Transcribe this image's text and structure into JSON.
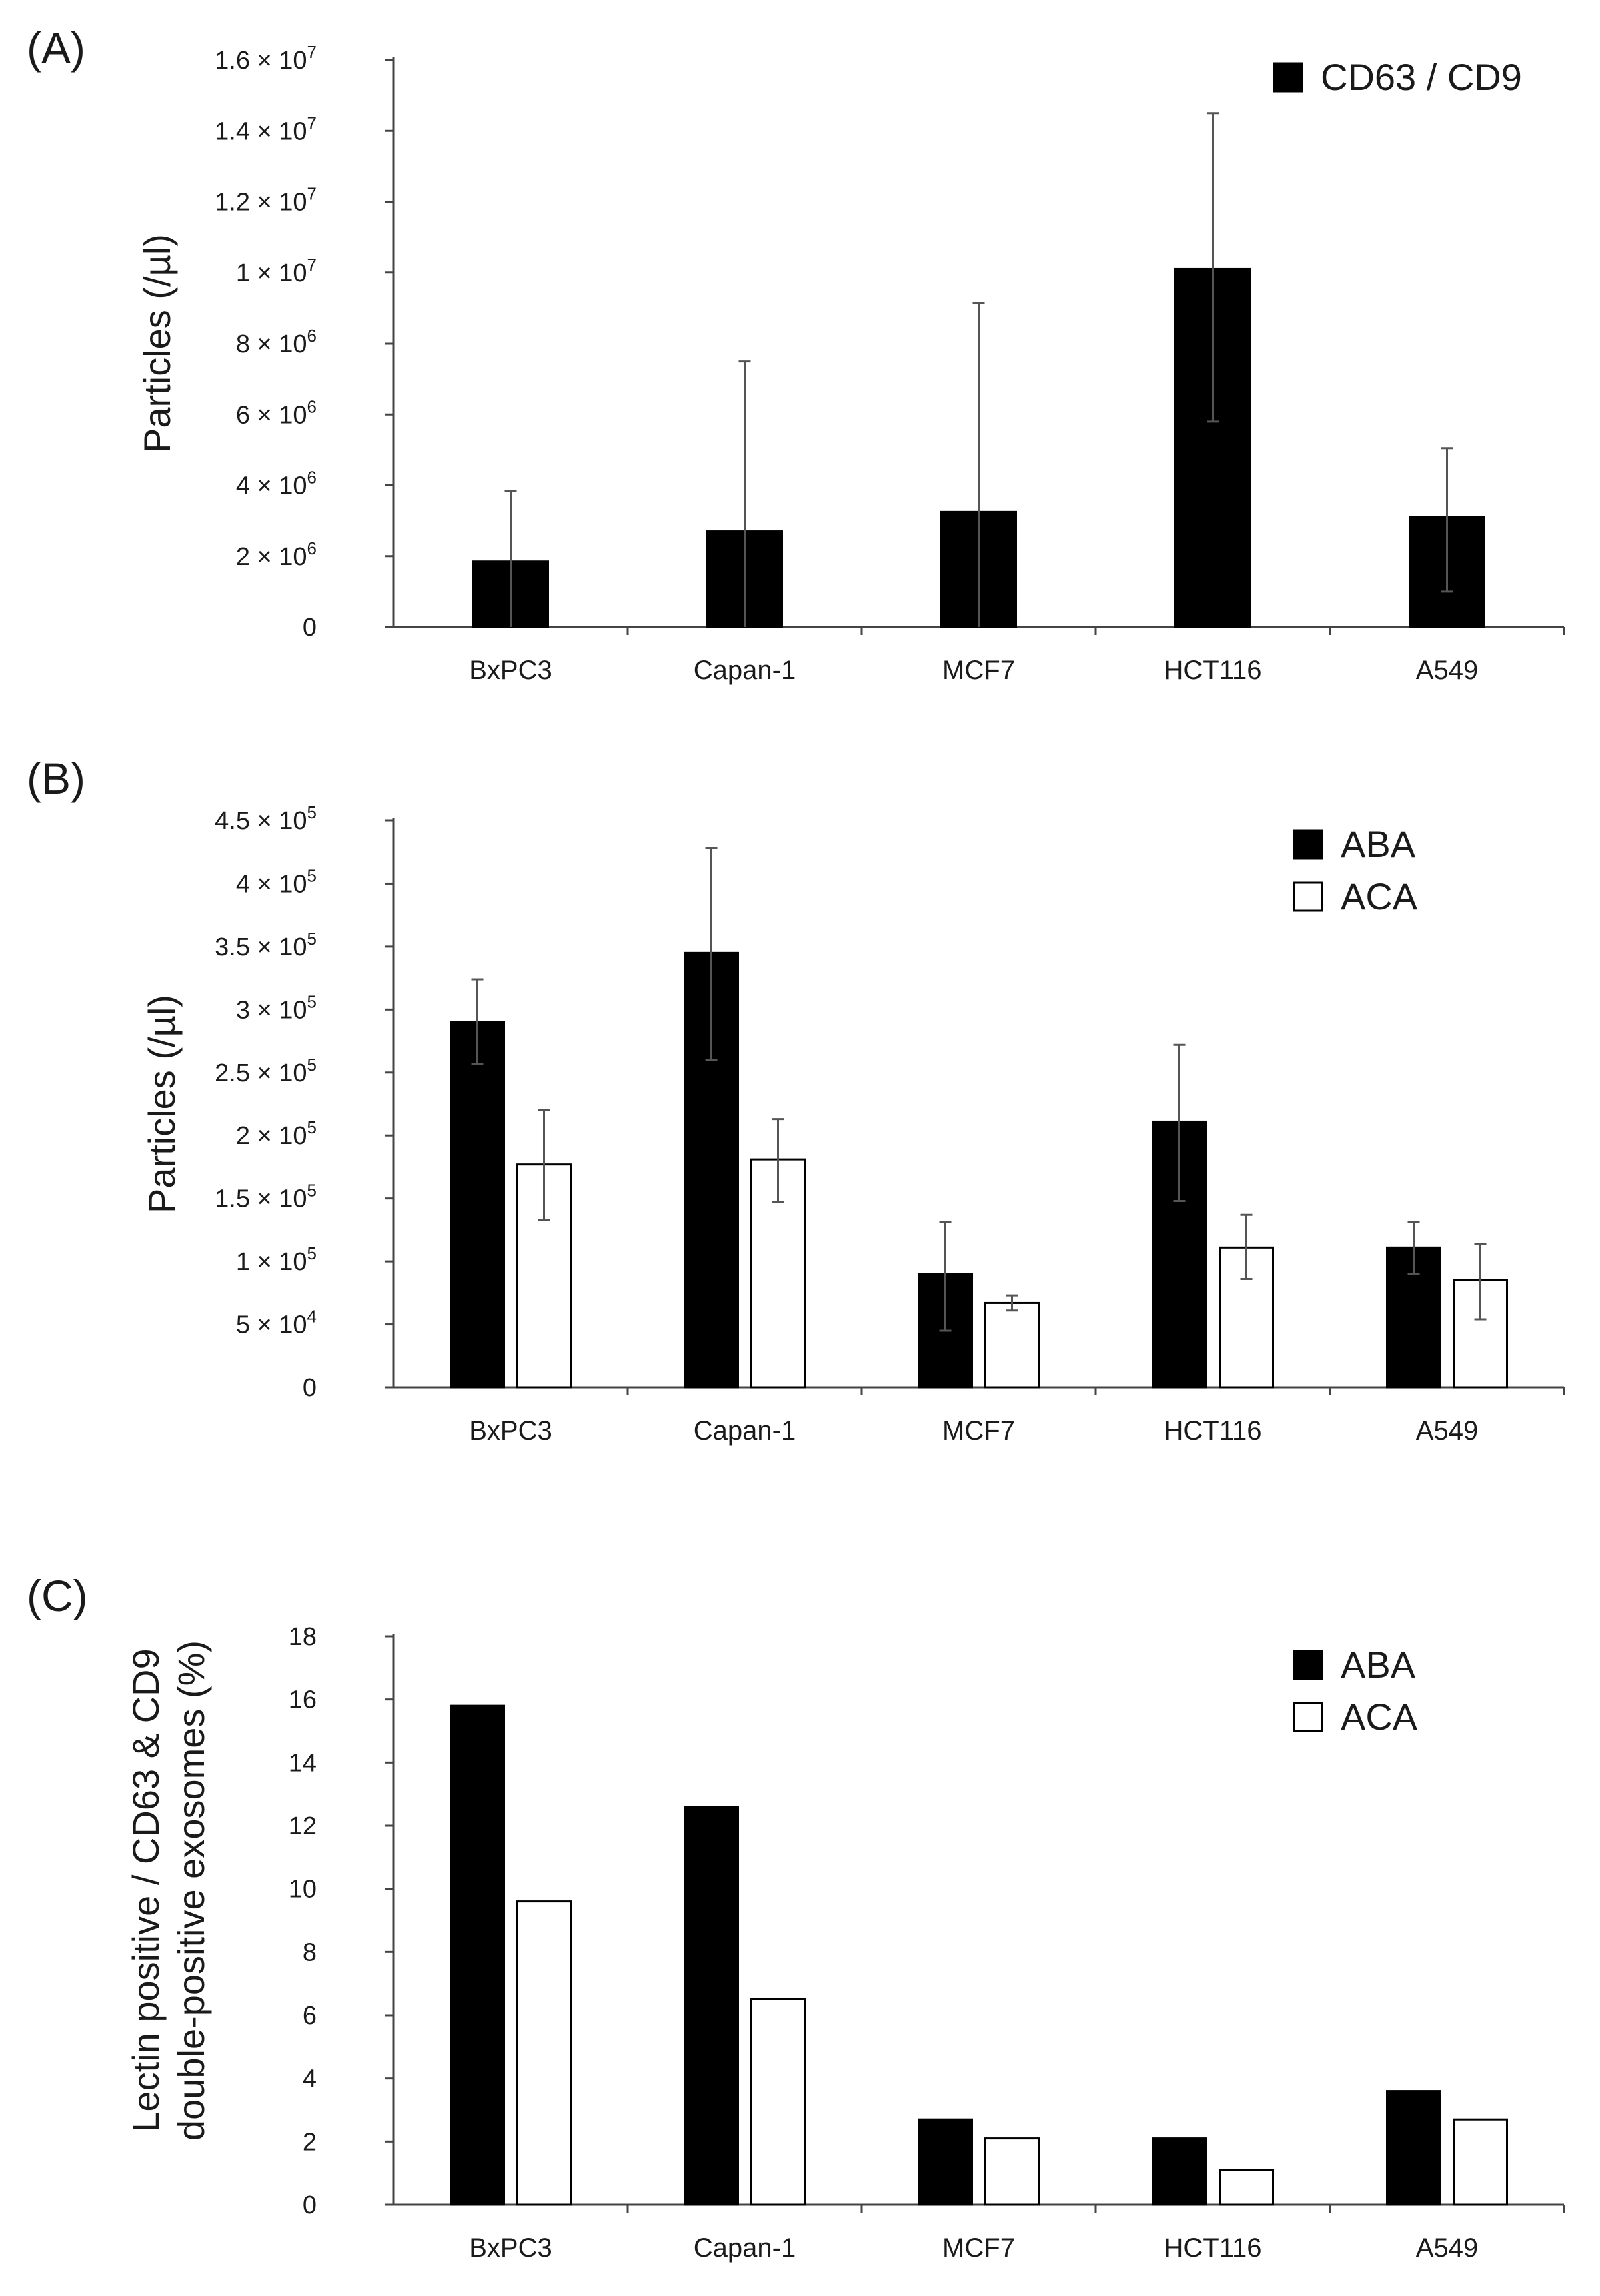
{
  "figure": {
    "panels": [
      "(A)",
      "(B)",
      "(C)"
    ]
  },
  "chart_data": [
    {
      "id": "A",
      "panel_label": "(A)",
      "type": "bar",
      "categories": [
        "BxPC3",
        "Capan-1",
        "MCF7",
        "HCT116",
        "A549"
      ],
      "series": [
        {
          "name": "CD63 / CD9",
          "fill": "#000000",
          "values": [
            1850000,
            2700000,
            3250000,
            10100000,
            3100000
          ],
          "error_low": [
            0,
            0,
            0,
            5800000,
            1000000
          ],
          "error_high": [
            3850000,
            7500000,
            9150000,
            14500000,
            5050000
          ]
        }
      ],
      "ylabel": "Particles (/µl)",
      "ylim": [
        0,
        16000000
      ],
      "yticks": [
        {
          "value": 0,
          "base": "0",
          "exp": ""
        },
        {
          "value": 2000000,
          "base": "2 × 10",
          "exp": "6"
        },
        {
          "value": 4000000,
          "base": "4 × 10",
          "exp": "6"
        },
        {
          "value": 6000000,
          "base": "6 × 10",
          "exp": "6"
        },
        {
          "value": 8000000,
          "base": "8 × 10",
          "exp": "6"
        },
        {
          "value": 10000000,
          "base": "1 × 10",
          "exp": "7"
        },
        {
          "value": 12000000,
          "base": "1.2 × 10",
          "exp": "7"
        },
        {
          "value": 14000000,
          "base": "1.4 × 10",
          "exp": "7"
        },
        {
          "value": 16000000,
          "base": "1.6 × 10",
          "exp": "7"
        }
      ],
      "legend_position": "top-right"
    },
    {
      "id": "B",
      "panel_label": "(B)",
      "type": "bar",
      "categories": [
        "BxPC3",
        "Capan-1",
        "MCF7",
        "HCT116",
        "A549"
      ],
      "series": [
        {
          "name": "ABA",
          "fill": "#000000",
          "values": [
            290000,
            345000,
            90000,
            211000,
            111000
          ],
          "error_low": [
            257000,
            260000,
            45000,
            148000,
            90000
          ],
          "error_high": [
            324000,
            428000,
            131000,
            272000,
            131000
          ]
        },
        {
          "name": "ACA",
          "fill": "#ffffff",
          "values": [
            177000,
            181000,
            67000,
            111000,
            85000
          ],
          "error_low": [
            133000,
            147000,
            61000,
            86000,
            54000
          ],
          "error_high": [
            220000,
            213000,
            73000,
            137000,
            114000
          ]
        }
      ],
      "ylabel": "Particles (/µl)",
      "ylim": [
        0,
        450000
      ],
      "yticks": [
        {
          "value": 0,
          "base": "0",
          "exp": ""
        },
        {
          "value": 50000,
          "base": "5 × 10",
          "exp": "4"
        },
        {
          "value": 100000,
          "base": "1 × 10",
          "exp": "5"
        },
        {
          "value": 150000,
          "base": "1.5 × 10",
          "exp": "5"
        },
        {
          "value": 200000,
          "base": "2 × 10",
          "exp": "5"
        },
        {
          "value": 250000,
          "base": "2.5 × 10",
          "exp": "5"
        },
        {
          "value": 300000,
          "base": "3 × 10",
          "exp": "5"
        },
        {
          "value": 350000,
          "base": "3.5 × 10",
          "exp": "5"
        },
        {
          "value": 400000,
          "base": "4 × 10",
          "exp": "5"
        },
        {
          "value": 450000,
          "base": "4.5 × 10",
          "exp": "5"
        }
      ],
      "legend_position": "top-right"
    },
    {
      "id": "C",
      "panel_label": "(C)",
      "type": "bar",
      "categories": [
        "BxPC3",
        "Capan-1",
        "MCF7",
        "HCT116",
        "A549"
      ],
      "series": [
        {
          "name": "ABA",
          "fill": "#000000",
          "values": [
            15.8,
            12.6,
            2.7,
            2.1,
            3.6
          ]
        },
        {
          "name": "ACA",
          "fill": "#ffffff",
          "values": [
            9.6,
            6.5,
            2.1,
            1.1,
            2.7
          ]
        }
      ],
      "ylabel_lines": [
        "Lectin positive / CD63 & CD9",
        "double-positive exosomes (%)"
      ],
      "ylim": [
        0,
        18
      ],
      "yticks": [
        {
          "value": 0,
          "base": "0",
          "exp": ""
        },
        {
          "value": 2,
          "base": "2",
          "exp": ""
        },
        {
          "value": 4,
          "base": "4",
          "exp": ""
        },
        {
          "value": 6,
          "base": "6",
          "exp": ""
        },
        {
          "value": 8,
          "base": "8",
          "exp": ""
        },
        {
          "value": 10,
          "base": "10",
          "exp": ""
        },
        {
          "value": 12,
          "base": "12",
          "exp": ""
        },
        {
          "value": 14,
          "base": "14",
          "exp": ""
        },
        {
          "value": 16,
          "base": "16",
          "exp": ""
        },
        {
          "value": 18,
          "base": "18",
          "exp": ""
        }
      ],
      "legend_position": "top-right"
    }
  ]
}
